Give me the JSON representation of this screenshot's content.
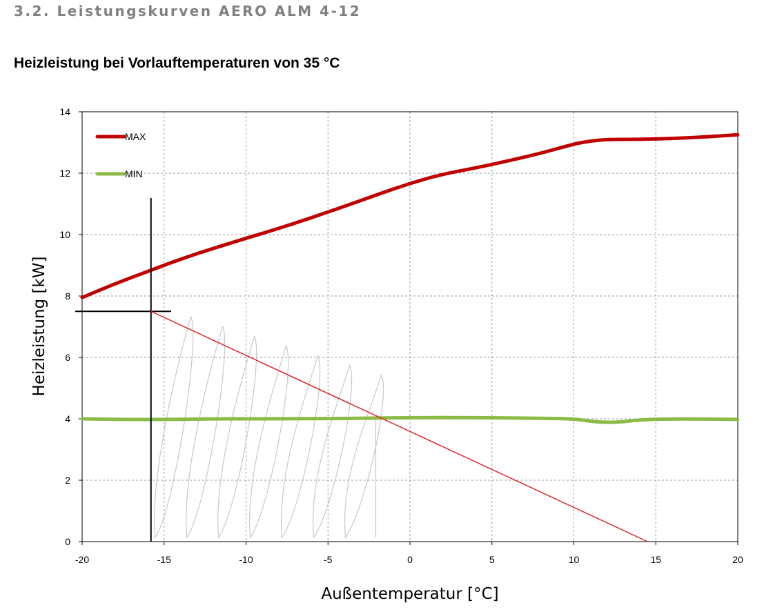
{
  "page": {
    "section_heading": "3.2. Leistungskurven AERO ALM 4-12",
    "chart_title": "Heizleistung bei Vorlauftemperaturen von 35 °C"
  },
  "chart_data": {
    "type": "line",
    "title": "Heizleistung bei Vorlauftemperaturen von 35 °C",
    "xlabel": "Außentemperatur [°C]",
    "ylabel": "Heizleistung [kW]",
    "xlim": [
      -20,
      20
    ],
    "ylim": [
      0,
      14
    ],
    "x_ticks": [
      -20,
      -15,
      -10,
      -5,
      0,
      5,
      10,
      15,
      20
    ],
    "y_ticks": [
      0,
      2,
      4,
      6,
      8,
      10,
      12,
      14
    ],
    "grid": true,
    "legend_position": "top-left",
    "series": [
      {
        "name": "MAX",
        "color": "#c00000",
        "x": [
          -20,
          -18,
          -16,
          -14,
          -12,
          -10,
          -8,
          -6,
          -4,
          -2,
          0,
          2,
          4,
          6,
          8,
          10,
          11,
          12,
          14,
          16,
          18,
          20
        ],
        "y": [
          7.95,
          8.4,
          8.8,
          9.2,
          9.55,
          9.88,
          10.2,
          10.55,
          10.92,
          11.3,
          11.67,
          11.97,
          12.17,
          12.4,
          12.65,
          12.95,
          13.05,
          13.1,
          13.1,
          13.13,
          13.18,
          13.25
        ]
      },
      {
        "name": "MIN",
        "color": "#8cbb45",
        "x": [
          -20,
          -16,
          -12,
          -8,
          -4,
          0,
          4,
          8,
          10,
          11,
          12,
          13,
          14,
          16,
          20
        ],
        "y": [
          4.0,
          3.97,
          4.0,
          4.0,
          4.01,
          4.04,
          4.04,
          4.02,
          4.0,
          3.92,
          3.88,
          3.9,
          3.97,
          4.0,
          3.98
        ]
      }
    ],
    "annotations": {
      "vertical_marker_x": -15.8,
      "horizontal_marker_y": 7.5,
      "red_line": {
        "x": [
          -15.8,
          14.5
        ],
        "y": [
          7.5,
          0
        ],
        "color": "#e0242b"
      },
      "shaded_region": {
        "x": [
          -15.8,
          -2
        ],
        "y": [
          0,
          7.5
        ],
        "style": "pencil-hatching"
      }
    }
  }
}
